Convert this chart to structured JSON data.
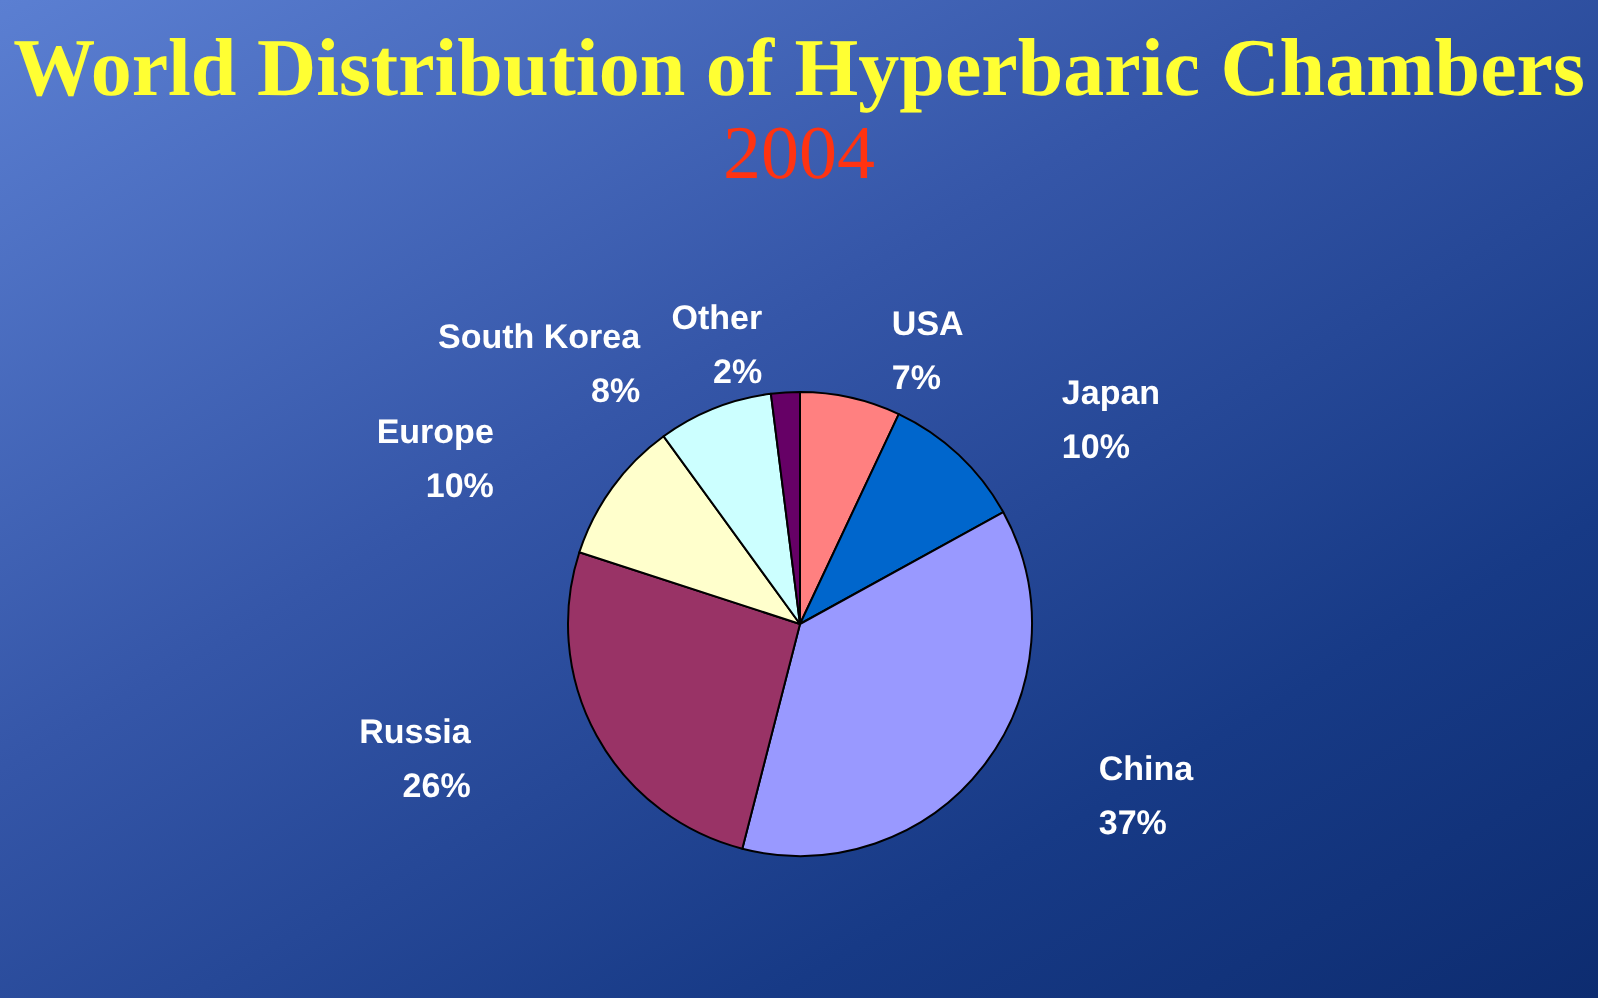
{
  "chart_data": {
    "type": "pie",
    "title": "World Distribution of Hyperbaric Chambers",
    "subtitle": "2004",
    "categories": [
      "USA",
      "Japan",
      "China",
      "Russia",
      "Europe",
      "South Korea",
      "Other"
    ],
    "values": [
      7,
      10,
      37,
      26,
      10,
      8,
      2
    ],
    "value_labels": [
      "7%",
      "10%",
      "37%",
      "26%",
      "10%",
      "8%",
      "2%"
    ],
    "colors": [
      "#ff8080",
      "#0066cc",
      "#9999ff",
      "#993366",
      "#ffffcc",
      "#ccffff",
      "#660066"
    ],
    "legend": false
  }
}
